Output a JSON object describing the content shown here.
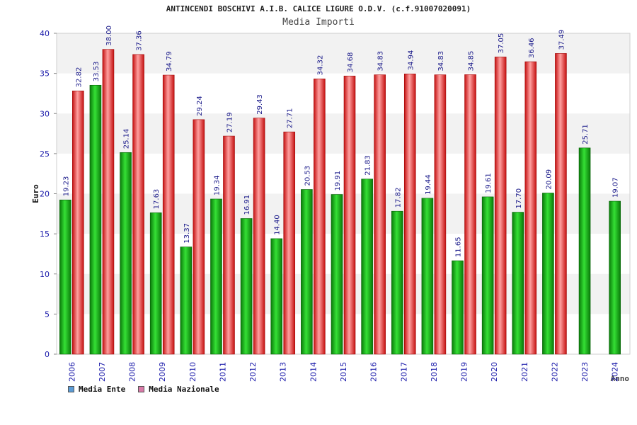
{
  "chart_data": {
    "type": "bar",
    "title": "ANTINCENDI BOSCHIVI A.I.B. CALICE LIGURE O.D.V. (c.f.91007020091)",
    "subtitle": "Media Importi",
    "xlabel": "Anno",
    "ylabel": "Euro",
    "ylim": [
      0,
      40
    ],
    "yticks": [
      "0",
      "5",
      "10",
      "15",
      "20",
      "25",
      "30",
      "35",
      "40"
    ],
    "categories": [
      "2006",
      "2007",
      "2008",
      "2009",
      "2010",
      "2011",
      "2012",
      "2013",
      "2014",
      "2015",
      "2016",
      "2017",
      "2018",
      "2019",
      "2020",
      "2021",
      "2022",
      "2023",
      "2024"
    ],
    "series": [
      {
        "name": "Media Ente",
        "values": [
          19.23,
          33.53,
          25.14,
          17.63,
          13.37,
          19.34,
          16.91,
          14.4,
          20.53,
          19.91,
          21.83,
          17.82,
          19.44,
          11.65,
          19.61,
          17.7,
          20.09,
          25.71,
          19.07
        ],
        "labels": [
          "19.23",
          "33.53",
          "25.14",
          "17.63",
          "13.37",
          "19.34",
          "16.91",
          "14.40",
          "20.53",
          "19.91",
          "21.83",
          "17.82",
          "19.44",
          "11.65",
          "19.61",
          "17.70",
          "20.09",
          "25.71",
          "19.07"
        ]
      },
      {
        "name": "Media Nazionale",
        "values": [
          32.82,
          38.0,
          37.36,
          34.79,
          29.24,
          27.19,
          29.43,
          27.71,
          34.32,
          34.68,
          34.83,
          34.94,
          34.83,
          34.85,
          37.05,
          36.46,
          37.49,
          null,
          null
        ],
        "labels": [
          "32.82",
          "38.00",
          "37.36",
          "34.79",
          "29.24",
          "27.19",
          "29.43",
          "27.71",
          "34.32",
          "34.68",
          "34.83",
          "34.94",
          "34.83",
          "34.85",
          "37.05",
          "36.46",
          "37.49",
          "",
          ""
        ]
      }
    ],
    "legend": [
      {
        "name": "Media Ente",
        "color": "#5b9bd5"
      },
      {
        "name": "Media Nazionale",
        "color": "#d97aa8"
      }
    ],
    "colors": {
      "ente_dark": "#0a7a0a",
      "ente_light": "#33dd33",
      "naz_dark": "#cc1111",
      "naz_light": "#ff9a9a",
      "band": "#f2f2f2",
      "axis_text": "#1a1aaa",
      "label_text": "#1a1a8a"
    }
  }
}
